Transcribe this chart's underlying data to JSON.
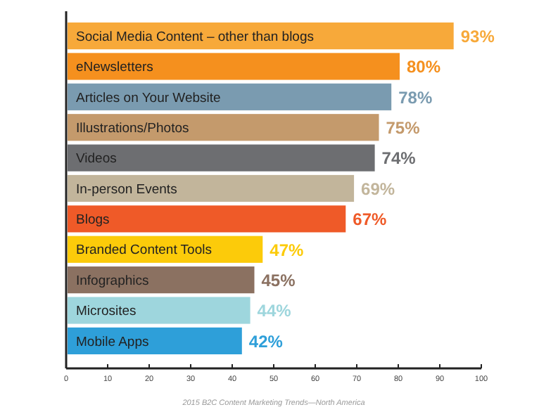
{
  "chart_data": {
    "type": "bar",
    "orientation": "horizontal",
    "categories": [
      "Social Media Content – other than blogs",
      "eNewsletters",
      "Articles on Your Website",
      "Illustrations/Photos",
      "Videos",
      "In-person Events",
      "Blogs",
      "Branded Content Tools",
      "Infographics",
      "Microsites",
      "Mobile Apps"
    ],
    "values": [
      93,
      80,
      78,
      75,
      74,
      69,
      67,
      47,
      45,
      44,
      42
    ],
    "value_labels": [
      "93%",
      "80%",
      "78%",
      "75%",
      "74%",
      "69%",
      "67%",
      "47%",
      "45%",
      "44%",
      "42%"
    ],
    "colors": [
      "#f7a93a",
      "#f5901e",
      "#7a9bb0",
      "#c49a6c",
      "#6d6e71",
      "#c2b59b",
      "#ef5a28",
      "#fccb0a",
      "#8b7161",
      "#9ed6dd",
      "#2e9fd9"
    ],
    "xlim": [
      0,
      100
    ],
    "xticks": [
      0,
      10,
      20,
      30,
      40,
      50,
      60,
      70,
      80,
      90,
      100
    ],
    "annotations": [
      "2015 B2C Content Marketing Trends—North America"
    ]
  }
}
